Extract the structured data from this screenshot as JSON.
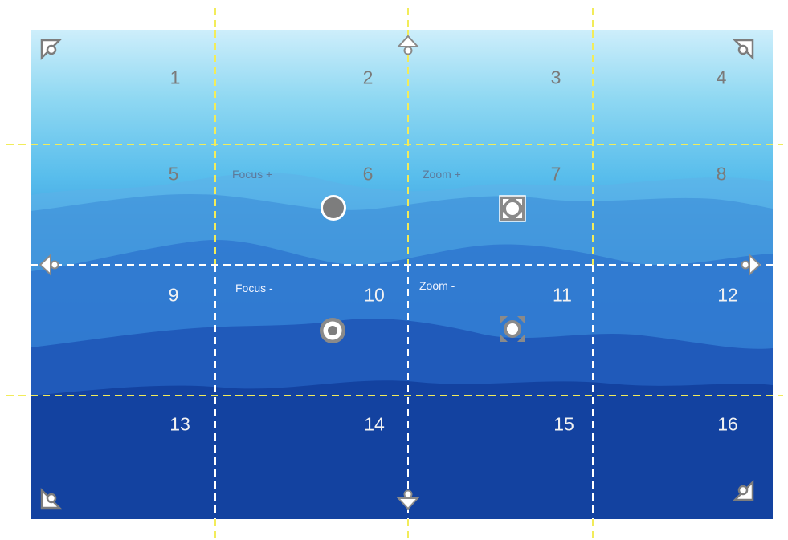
{
  "cells": [
    "1",
    "2",
    "3",
    "4",
    "5",
    "6",
    "7",
    "8",
    "9",
    "10",
    "11",
    "12",
    "13",
    "14",
    "15",
    "16"
  ],
  "controls": {
    "focus_plus": "Focus +",
    "zoom_plus": "Zoom +",
    "focus_minus": "Focus -",
    "zoom_minus": "Zoom -"
  },
  "colors": {
    "grid_line_yellow": "#f2ec5a",
    "grid_line_white": "#ffffff",
    "control_gray": "#8a8a8a"
  },
  "icons": {
    "pan_up": "arrow-up-icon",
    "pan_down": "arrow-down-icon",
    "pan_left": "arrow-left-icon",
    "pan_right": "arrow-right-icon",
    "pan_up_left": "arrow-up-left-icon",
    "pan_up_right": "arrow-up-right-icon",
    "pan_down_left": "arrow-down-left-icon",
    "pan_down_right": "arrow-down-right-icon",
    "focus_plus": "filled-circle-icon",
    "focus_minus": "ring-dot-icon",
    "zoom_plus": "zoom-in-frame-icon",
    "zoom_minus": "zoom-out-arrows-icon"
  }
}
